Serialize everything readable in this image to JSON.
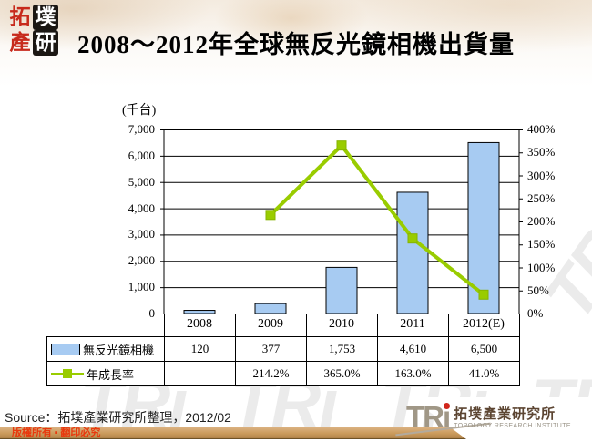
{
  "header": {
    "logo_chars": [
      "拓",
      "墣",
      "產",
      "研"
    ],
    "title": "2008～2012年全球無反光鏡相機出貨量"
  },
  "chart_data": {
    "type": "bar",
    "subtype": "bar+line combo",
    "unit_label": "(千台)",
    "categories": [
      "2008",
      "2009",
      "2010",
      "2011",
      "2012(E)"
    ],
    "series": [
      {
        "name": "無反光鏡相機",
        "type": "bar",
        "axis": "left",
        "values": [
          120,
          377,
          1753,
          4610,
          6500
        ],
        "display": [
          "120",
          "377",
          "1,753",
          "4,610",
          "6,500"
        ],
        "color": "#A7CBF2"
      },
      {
        "name": "年成長率",
        "type": "line",
        "axis": "right",
        "values": [
          null,
          214.2,
          365.0,
          163.0,
          41.0
        ],
        "display": [
          "",
          "214.2%",
          "365.0%",
          "163.0%",
          "41.0%"
        ],
        "color": "#99CC00"
      }
    ],
    "left_axis": {
      "min": 0,
      "max": 7000,
      "step": 1000,
      "tick_labels": [
        "0",
        "1,000",
        "2,000",
        "3,000",
        "4,000",
        "5,000",
        "6,000",
        "7,000"
      ]
    },
    "right_axis": {
      "min": 0,
      "max": 400,
      "step": 50,
      "tick_labels": [
        "0%",
        "50%",
        "100%",
        "150%",
        "200%",
        "250%",
        "300%",
        "350%",
        "400%"
      ]
    },
    "grid": true,
    "legend_position": "table-below",
    "title": "2008～2012年全球無反光鏡相機出貨量"
  },
  "footer": {
    "source": "Source：拓墣產業研究所整理，2012/02",
    "copyright": "版權所有 ▪ 翻印必究",
    "logo": {
      "acronym": "TRi",
      "name_zh": "拓墣產業研究所",
      "name_en": "TOPOLOGY RESEARCH INSTITUTE"
    }
  },
  "watermark": {
    "text": "TRi"
  },
  "colors": {
    "bar_fill": "#A7CBF2",
    "line": "#99CC00",
    "footer_bar": "#CA9A5B",
    "copyright_red": "#E8380D",
    "stamp_red": "#C72A1C"
  }
}
